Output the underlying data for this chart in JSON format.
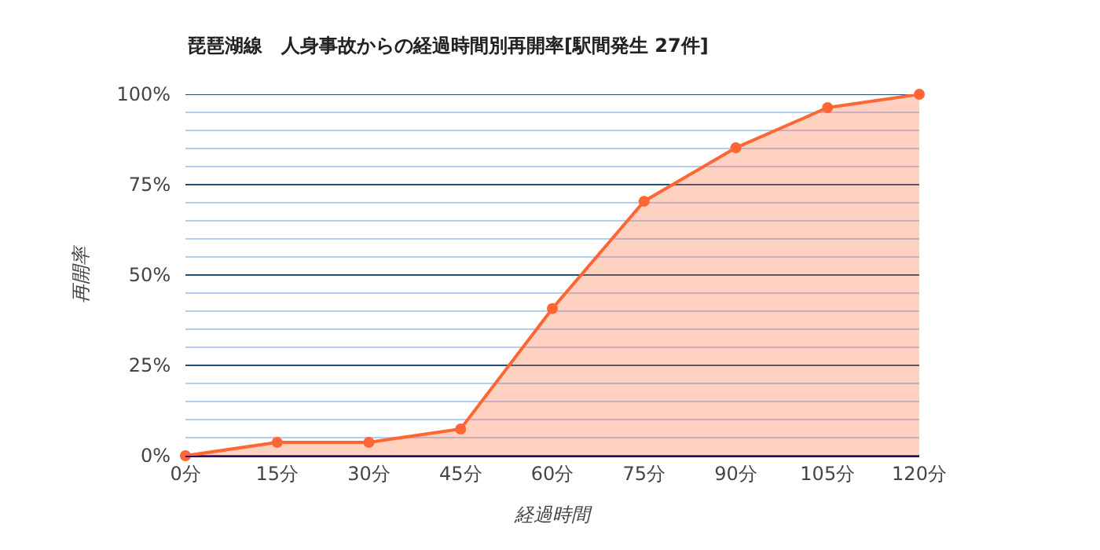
{
  "chart_data": {
    "type": "area",
    "title": "琵琶湖線　人身事故からの経過時間別再開率[駅間発生 27件]",
    "xlabel": "経過時間",
    "ylabel": "再開率",
    "categories": [
      "0分",
      "15分",
      "30分",
      "45分",
      "60分",
      "75分",
      "90分",
      "105分",
      "120分"
    ],
    "series": [
      {
        "color": "#ff6633",
        "values": [
          0,
          3.7,
          3.7,
          7.4,
          40.7,
          70.4,
          85.2,
          96.3,
          100
        ]
      }
    ],
    "ylim": [
      0,
      100
    ],
    "yticks": [
      {
        "value": 0,
        "label": "0%"
      },
      {
        "value": 5,
        "label": null
      },
      {
        "value": 10,
        "label": null
      },
      {
        "value": 15,
        "label": null
      },
      {
        "value": 20,
        "label": null
      },
      {
        "value": 25,
        "label": "25%"
      },
      {
        "value": 30,
        "label": null
      },
      {
        "value": 35,
        "label": null
      },
      {
        "value": 40,
        "label": null
      },
      {
        "value": 45,
        "label": null
      },
      {
        "value": 50,
        "label": "50%"
      },
      {
        "value": 55,
        "label": null
      },
      {
        "value": 60,
        "label": null
      },
      {
        "value": 65,
        "label": null
      },
      {
        "value": 70,
        "label": null
      },
      {
        "value": 75,
        "label": "75%"
      },
      {
        "value": 80,
        "label": null
      },
      {
        "value": 85,
        "label": null
      },
      {
        "value": 90,
        "label": null
      },
      {
        "value": 95,
        "label": null
      },
      {
        "value": 100,
        "label": "100%"
      }
    ],
    "grid": "y",
    "marker": "circle",
    "line_style": "solid",
    "legend": false
  }
}
